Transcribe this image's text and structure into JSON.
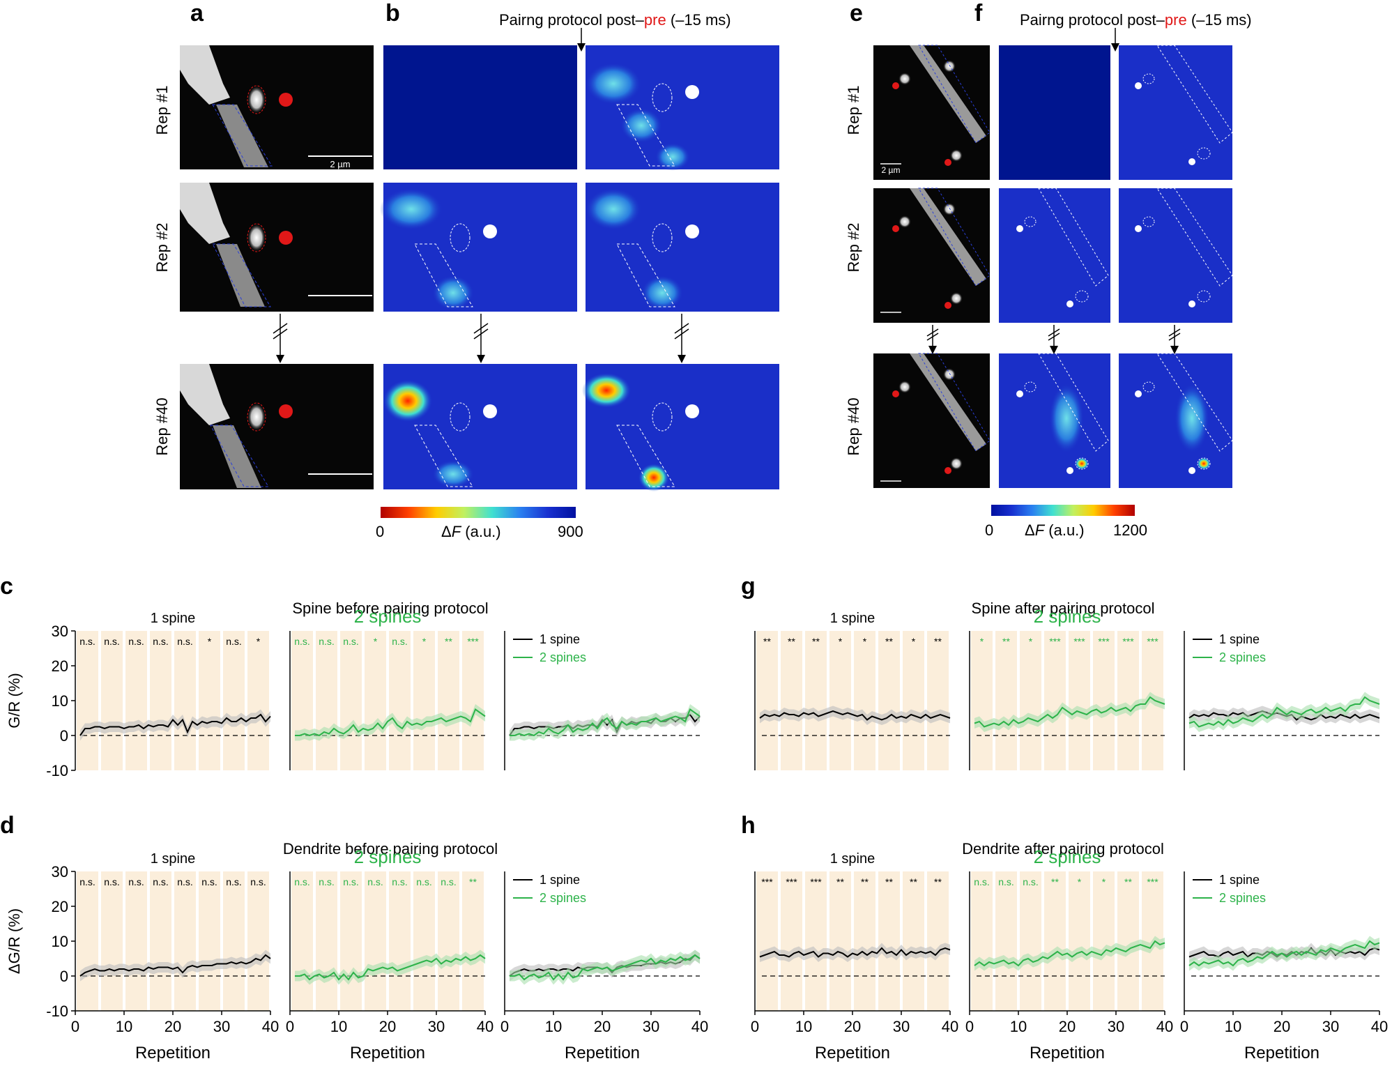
{
  "panels": {
    "a": "a",
    "b": "b",
    "c": "c",
    "d": "d",
    "e": "e",
    "f": "f",
    "g": "g",
    "h": "h"
  },
  "protocol_title_left": {
    "prefix": "Pairng protocol post–",
    "highlight": "pre",
    "suffix": " (–15 ms)"
  },
  "protocol_title_right": {
    "prefix": "Pairng protocol post–",
    "highlight": "pre",
    "suffix": " (–15 ms)"
  },
  "reps": [
    "Rep #1",
    "Rep #2",
    "Rep #40"
  ],
  "scale_bar_label": "2 µm",
  "colorbar_left": {
    "min": "0",
    "max": "900",
    "label_delta": "Δ",
    "label_f": "F",
    "label_unit": " (a.u.)"
  },
  "colorbar_right": {
    "min": "0",
    "max": "1200",
    "label_delta": "Δ",
    "label_f": "F",
    "label_unit": " (a.u.)"
  },
  "colors": {
    "black": "#000000",
    "green": "#2db34a",
    "bg_shade": "#fbeedb",
    "red": "#e01818",
    "gray_band": "#bdbdbd",
    "green_band": "#a8dfae"
  },
  "chart_data": [
    {
      "id": "c",
      "type": "line",
      "title": "Spine before pairing protocol",
      "ylabel": "G/R (%)",
      "xlabel": "",
      "ylim": [
        -10,
        30
      ],
      "xlim": [
        0,
        40
      ],
      "yticks": [
        "30",
        "20",
        "10",
        "0",
        "-10"
      ],
      "subplots": [
        {
          "label": "1 spine",
          "label_color": "black",
          "stars": [
            "n.s.",
            "n.s.",
            "n.s.",
            "n.s.",
            "n.s.",
            "*",
            "n.s.",
            "*"
          ],
          "series": [
            "black"
          ]
        },
        {
          "label": "2 spines",
          "label_color": "green",
          "stars": [
            "n.s.",
            "n.s.",
            "n.s.",
            "*",
            "n.s.",
            "*",
            "**",
            "***"
          ],
          "series": [
            "green"
          ]
        },
        {
          "label": "",
          "legend": [
            "1 spine",
            "2 spines"
          ],
          "series": [
            "black",
            "green"
          ]
        }
      ],
      "series": [
        {
          "name": "1 spine",
          "values": [
            0,
            2,
            2,
            2.5,
            2.5,
            2,
            2.5,
            2.5,
            2.5,
            2,
            2.5,
            2.5,
            3,
            2,
            3,
            2.5,
            3,
            3,
            2.5,
            4.5,
            3,
            4.5,
            1,
            4,
            3,
            4,
            3.5,
            4,
            4,
            3.5,
            5,
            4,
            4,
            5,
            4,
            5,
            5,
            6,
            4,
            5.5
          ]
        },
        {
          "name": "2 spines",
          "values": [
            0,
            0,
            0.5,
            0,
            0.5,
            0,
            1,
            0.5,
            2,
            1,
            0.5,
            1.5,
            3,
            1,
            2,
            1.5,
            2,
            3.5,
            2,
            4,
            5,
            3,
            2,
            4,
            3,
            3.5,
            3,
            4,
            4,
            4.5,
            5,
            4,
            4.5,
            5,
            5.5,
            5,
            4,
            7.5,
            6.5,
            5.5
          ]
        }
      ]
    },
    {
      "id": "d",
      "type": "line",
      "title": "Dendrite before pairing protocol",
      "ylabel": "ΔG/R (%)",
      "xlabel": "Repetition",
      "ylim": [
        -10,
        30
      ],
      "xlim": [
        0,
        40
      ],
      "yticks": [
        "30",
        "20",
        "10",
        "0",
        "-10"
      ],
      "xticks": [
        "0",
        "10",
        "20",
        "30",
        "40"
      ],
      "subplots": [
        {
          "label": "1 spine",
          "label_color": "black",
          "stars": [
            "n.s.",
            "n.s.",
            "n.s.",
            "n.s.",
            "n.s.",
            "n.s.",
            "n.s.",
            "n.s."
          ],
          "series": [
            "black"
          ]
        },
        {
          "label": "2 spines",
          "label_color": "green",
          "stars": [
            "n.s.",
            "n.s.",
            "n.s.",
            "n.s.",
            "n.s.",
            "n.s.",
            "n.s.",
            "**"
          ],
          "series": [
            "green"
          ]
        },
        {
          "label": "",
          "legend": [
            "1 spine",
            "2 spines"
          ],
          "series": [
            "black",
            "green"
          ]
        }
      ],
      "series": [
        {
          "name": "1 spine",
          "values": [
            0,
            1,
            1.5,
            2,
            1.5,
            1.5,
            2,
            1.5,
            2,
            2,
            1.5,
            2,
            2,
            1.5,
            2.5,
            2,
            2.5,
            2.5,
            2.5,
            2,
            2.5,
            1,
            2.5,
            3,
            2.5,
            3,
            3,
            3,
            3.5,
            3.5,
            3.5,
            4,
            3.5,
            4,
            3.5,
            4,
            5,
            4.5,
            6,
            5
          ]
        },
        {
          "name": "2 spines",
          "values": [
            0,
            0,
            0.5,
            -1,
            0,
            0.5,
            -0.5,
            0,
            1,
            -1,
            0.5,
            -1,
            1,
            -0.5,
            0,
            2,
            1.5,
            2,
            2.5,
            2,
            2.5,
            1.5,
            2,
            2.5,
            3,
            3.5,
            4,
            4.5,
            4,
            5,
            3.5,
            4.5,
            4,
            5,
            4.5,
            5.5,
            4.5,
            5,
            6,
            5
          ]
        }
      ]
    },
    {
      "id": "g",
      "type": "line",
      "title": "Spine after pairing protocol",
      "ylabel": "",
      "xlabel": "",
      "ylim": [
        -10,
        30
      ],
      "xlim": [
        0,
        40
      ],
      "subplots": [
        {
          "label": "1 spine",
          "label_color": "black",
          "stars": [
            "**",
            "**",
            "**",
            "*",
            "*",
            "**",
            "*",
            "**"
          ],
          "series": [
            "black"
          ]
        },
        {
          "label": "2 spines",
          "label_color": "green",
          "stars": [
            "*",
            "**",
            "*",
            "***",
            "***",
            "***",
            "***",
            "***"
          ],
          "series": [
            "green"
          ]
        },
        {
          "label": "",
          "legend": [
            "1 spine",
            "2 spines"
          ],
          "series": [
            "black",
            "green"
          ]
        }
      ],
      "series": [
        {
          "name": "1 spine",
          "values": [
            5,
            6,
            5.5,
            6,
            5.5,
            6.5,
            6,
            6,
            5.5,
            6.5,
            6,
            6.5,
            5.5,
            6,
            6.5,
            7,
            6.5,
            6,
            6.5,
            6,
            5.5,
            6,
            4.5,
            5.5,
            5,
            4.5,
            5,
            6,
            5,
            5.5,
            5,
            6,
            5.5,
            5,
            6,
            5,
            5.5,
            6,
            5.5,
            5
          ]
        },
        {
          "name": "2 spines",
          "values": [
            3.5,
            4,
            2.5,
            3,
            3.5,
            3,
            4,
            3,
            4.5,
            3.5,
            4,
            5,
            4.5,
            4,
            5,
            6,
            5,
            6,
            8,
            7,
            6,
            7,
            6.5,
            6,
            7,
            7.5,
            6.5,
            7,
            8,
            7,
            7.5,
            8,
            7,
            8.5,
            9,
            9,
            11,
            10,
            9.5,
            9
          ]
        }
      ]
    },
    {
      "id": "h",
      "type": "line",
      "title": "Dendrite after pairing protocol",
      "ylabel": "",
      "xlabel": "Repetition",
      "ylim": [
        -10,
        30
      ],
      "xlim": [
        0,
        40
      ],
      "xticks": [
        "0",
        "10",
        "20",
        "30",
        "40"
      ],
      "subplots": [
        {
          "label": "1 spine",
          "label_color": "black",
          "stars": [
            "***",
            "***",
            "***",
            "**",
            "**",
            "**",
            "**",
            "**"
          ],
          "series": [
            "black"
          ]
        },
        {
          "label": "2 spines",
          "label_color": "green",
          "stars": [
            "n.s.",
            "n.s.",
            "n.s.",
            "**",
            "*",
            "*",
            "**",
            "***"
          ],
          "series": [
            "green"
          ]
        },
        {
          "label": "",
          "legend": [
            "1 spine",
            "2 spines"
          ],
          "series": [
            "black",
            "green"
          ]
        }
      ],
      "series": [
        {
          "name": "1 spine",
          "values": [
            5.5,
            6,
            6.5,
            7,
            6,
            6,
            5.5,
            6.5,
            7,
            6,
            6.5,
            7,
            5.5,
            6.5,
            6.5,
            6,
            7,
            6.5,
            5.5,
            6.5,
            6,
            7,
            6,
            7,
            6.5,
            8,
            6.5,
            7,
            6,
            7.5,
            6,
            7,
            6.5,
            7,
            6.5,
            7,
            6,
            7.5,
            8,
            7.5
          ]
        },
        {
          "name": "2 spines",
          "values": [
            3,
            4,
            3,
            4,
            3.5,
            4,
            4.5,
            3.5,
            4,
            3,
            4.5,
            5,
            4,
            4.5,
            5.5,
            5,
            6,
            7,
            6,
            6.5,
            5.5,
            6.5,
            7,
            6,
            7,
            6.5,
            6,
            7.5,
            7,
            8,
            7.5,
            7,
            8,
            8.5,
            9,
            8.5,
            8,
            10,
            9,
            9.5
          ]
        }
      ]
    }
  ]
}
